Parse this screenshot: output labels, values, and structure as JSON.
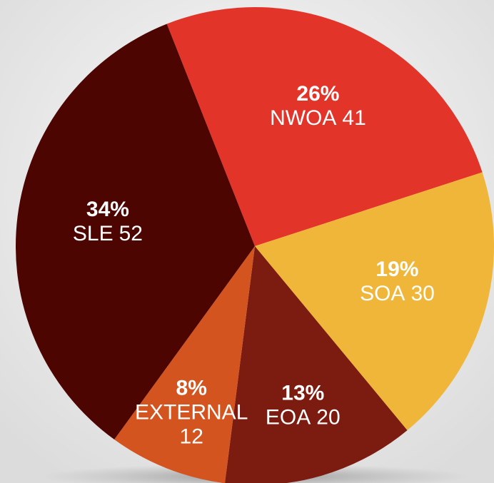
{
  "chart_data": {
    "type": "pie",
    "categories": [
      "NWOA",
      "SOA",
      "EOA",
      "EXTERNAL",
      "SLE"
    ],
    "values": [
      26,
      19,
      13,
      8,
      34
    ],
    "value_labels": [
      "26%",
      "19%",
      "13%",
      "8%",
      "34%"
    ],
    "counts": [
      41,
      30,
      20,
      12,
      52
    ],
    "colors": [
      "#e3342a",
      "#efb63a",
      "#7c1b10",
      "#d3541f",
      "#4d0502"
    ]
  }
}
